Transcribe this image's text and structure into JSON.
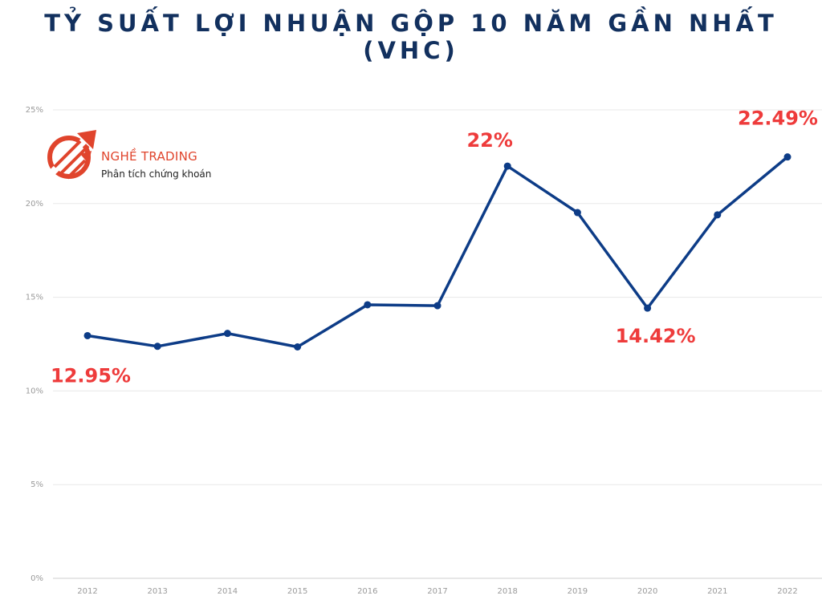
{
  "title": {
    "line1": "TỶ SUẤT LỢI NHUẬN GỘP 10 NĂM GẦN NHẤT",
    "line2": "(VHC)"
  },
  "logo": {
    "name": "NGHỀ TRADING",
    "tagline": "Phân tích chứng khoán",
    "icon": "chart-arrow-logo-icon"
  },
  "colors": {
    "title": "#12305e",
    "line": "#0d3c87",
    "annotation": "#ee3b3b",
    "grid": "#e8e8e8",
    "tick": "#9a9a9a",
    "logo": "#e0442c"
  },
  "chart_data": {
    "type": "line",
    "x": [
      "2012",
      "2013",
      "2014",
      "2015",
      "2016",
      "2017",
      "2018",
      "2019",
      "2020",
      "2021",
      "2022"
    ],
    "series": [
      {
        "values": [
          12.95,
          12.38,
          13.07,
          12.35,
          14.6,
          14.55,
          22.0,
          19.52,
          14.42,
          19.4,
          22.49
        ]
      }
    ],
    "ylim": [
      0,
      25
    ],
    "yticks": [
      "0%",
      "5%",
      "10%",
      "15%",
      "20%",
      "25%"
    ],
    "grid": true,
    "legend": "none",
    "annotations": [
      {
        "label": "12.95%",
        "x": "2012",
        "y": 12.95
      },
      {
        "label": "22%",
        "x": "2018",
        "y": 22.0
      },
      {
        "label": "14.42%",
        "x": "2020",
        "y": 14.42
      },
      {
        "label": "22.49%",
        "x": "2022",
        "y": 22.49
      }
    ]
  }
}
